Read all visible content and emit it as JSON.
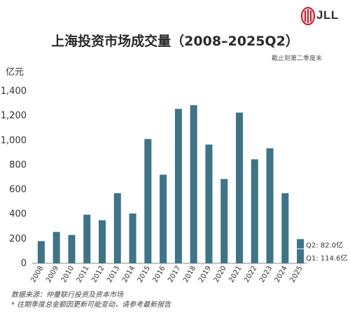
{
  "brand": {
    "name": "JLL",
    "accent": "#e30613"
  },
  "header": {
    "title": "上海投资市场成交量（2008–2025Q2）",
    "subtitle": "截止到第二季度末",
    "unit": "亿元"
  },
  "chart_data": {
    "type": "bar",
    "title": "上海投资市场成交量（2008–2025Q2）",
    "ylabel": "亿元",
    "xlabel": "",
    "ylim": [
      0,
      1400
    ],
    "yticks": [
      0,
      200,
      400,
      600,
      800,
      1000,
      1200,
      1400
    ],
    "ytick_labels": [
      "0",
      "200",
      "400",
      "600",
      "800",
      "1,000",
      "1,200",
      "1,400"
    ],
    "grid": false,
    "categories": [
      "2008",
      "2009",
      "2010",
      "2011",
      "2012",
      "2013",
      "2014",
      "2015",
      "2016",
      "2017",
      "2018",
      "2019",
      "2020",
      "2021",
      "2022",
      "2023",
      "2024",
      "2025"
    ],
    "values": [
      180,
      255,
      230,
      395,
      350,
      570,
      405,
      1010,
      720,
      1255,
      1285,
      965,
      685,
      1225,
      845,
      935,
      570,
      null
    ],
    "bar_color": "#3d7488",
    "stacked_2025": [
      {
        "name": "Q1",
        "value": 114.6,
        "label": "Q1: 114.6亿"
      },
      {
        "name": "Q2",
        "value": 82.0,
        "label": "Q2: 82.0亿"
      }
    ]
  },
  "footer": {
    "source": "数据来源：仲量联行投资及资本市场",
    "note": "* 往期季度总金额因更新可能变动，请参考最新报告"
  }
}
